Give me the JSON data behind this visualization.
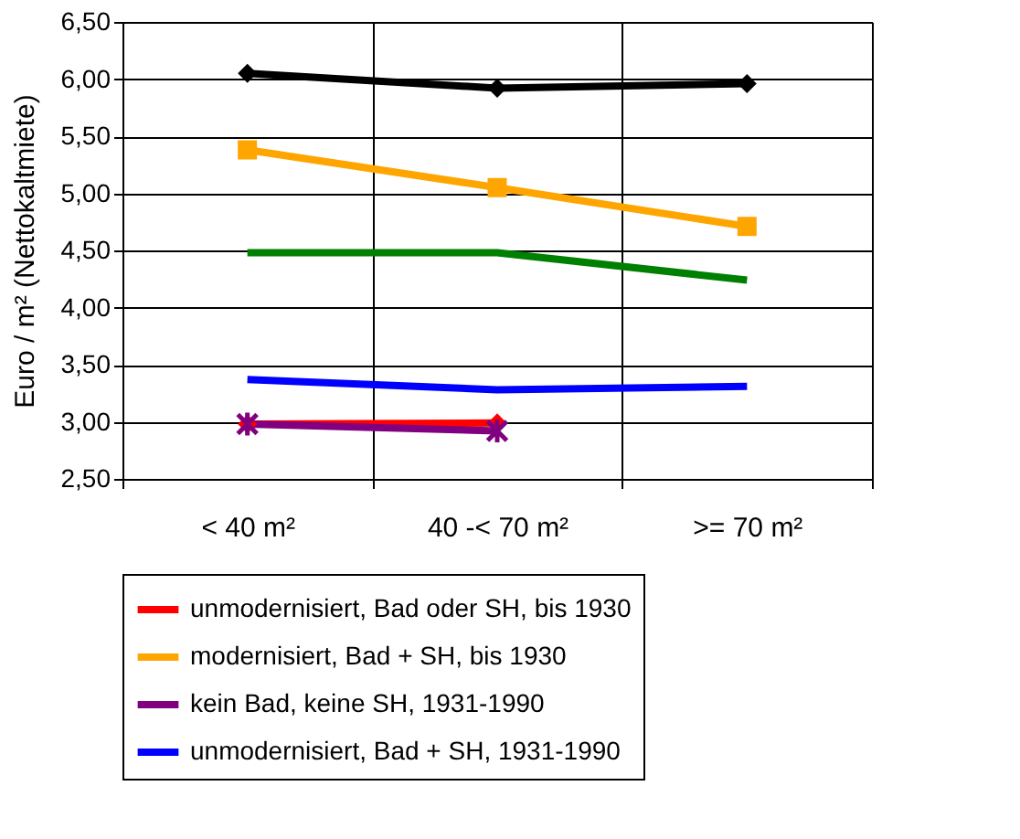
{
  "chart_data": {
    "type": "line",
    "ylabel": "Euro / m² (Nettokaltmiete)",
    "categories": [
      "< 40 m²",
      "40 -< 70 m²",
      ">= 70 m²"
    ],
    "ylim": [
      2.5,
      6.5
    ],
    "yticks": [
      {
        "value": 2.5,
        "label": "2,50"
      },
      {
        "value": 3.0,
        "label": "3,00"
      },
      {
        "value": 3.5,
        "label": "3,50"
      },
      {
        "value": 4.0,
        "label": "4,00"
      },
      {
        "value": 4.5,
        "label": "4,50"
      },
      {
        "value": 5.0,
        "label": "5,00"
      },
      {
        "value": 5.5,
        "label": "5,50"
      },
      {
        "value": 6.0,
        "label": "6,00"
      },
      {
        "value": 6.5,
        "label": "6,50"
      }
    ],
    "grid": true,
    "legend": "bottom",
    "line_style": "solid",
    "series": [
      {
        "name": "unmodernisiert, Bad oder SH, bis 1930",
        "color": "#ff0000",
        "marker": "diamond",
        "values": [
          2.98,
          2.99,
          null
        ]
      },
      {
        "name": "modernisiert, Bad + SH, bis 1930",
        "color": "#ffa500",
        "marker": "square",
        "values": [
          5.38,
          5.05,
          4.71
        ]
      },
      {
        "name": "kein Bad, keine SH, 1931-1990",
        "color": "#800080",
        "marker": "cross",
        "values": [
          2.98,
          2.92,
          null
        ]
      },
      {
        "name": "unmodernisiert, Bad + SH, 1931-1990",
        "color": "#0000ff",
        "marker": "none",
        "values": [
          3.37,
          3.28,
          3.31
        ]
      },
      {
        "color": "#000000",
        "marker": "diamond",
        "values": [
          6.05,
          5.92,
          5.96
        ]
      },
      {
        "color": "#008000",
        "marker": "none",
        "values": [
          4.48,
          4.48,
          4.24
        ]
      }
    ]
  }
}
